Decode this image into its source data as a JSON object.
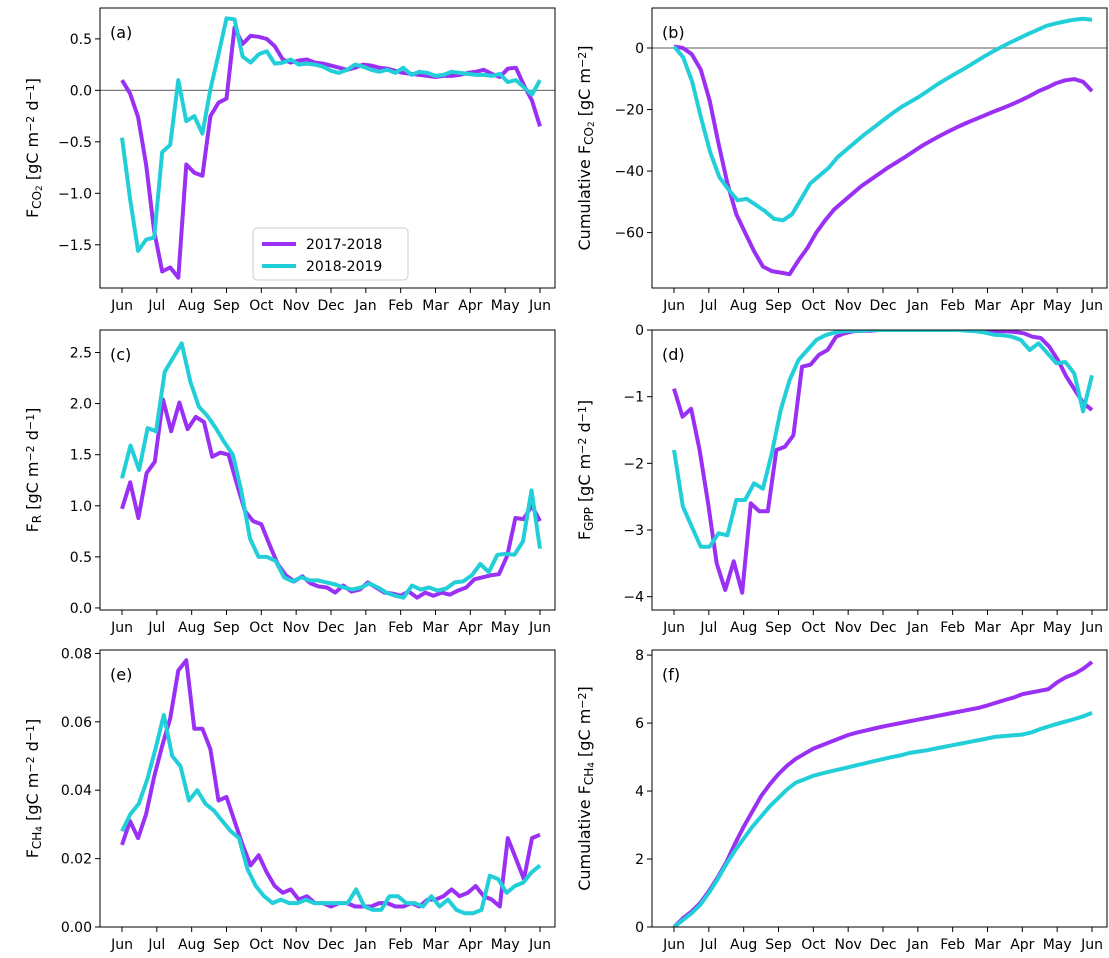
{
  "legend": [
    {
      "name": "2017-2018",
      "color": "#9b30f5"
    },
    {
      "name": "2018-2019",
      "color": "#22cfd9"
    }
  ],
  "chart_data": [
    {
      "type": "line",
      "panel": "(a)",
      "ylabel_main": "F",
      "ylabel_sub": "CO",
      "ylabel_subsub": "2",
      "ylabel_units": " [gC m",
      "ylabel_exp1": "−2",
      "ylabel_mid": " d",
      "ylabel_exp2": "−1",
      "ylabel_end": "]",
      "ylim": [
        -1.92,
        0.8
      ],
      "yticks": [
        -1.5,
        -1.0,
        -0.5,
        0.0,
        0.5
      ],
      "ytick_labels": [
        "−1.5",
        "−1.0",
        "−0.5",
        "0.0",
        "0.5"
      ],
      "zero_line": true,
      "series": [
        {
          "name": "2017-2018",
          "values": [
            0.1,
            -0.03,
            -0.26,
            -0.72,
            -1.37,
            -1.76,
            -1.72,
            -1.82,
            -0.72,
            -0.8,
            -0.83,
            -0.25,
            -0.12,
            -0.08,
            0.61,
            0.45,
            0.53,
            0.52,
            0.5,
            0.43,
            0.3,
            0.27,
            0.29,
            0.3,
            0.27,
            0.26,
            0.24,
            0.22,
            0.2,
            0.22,
            0.25,
            0.24,
            0.22,
            0.21,
            0.19,
            0.17,
            0.16,
            0.15,
            0.14,
            0.13,
            0.14,
            0.14,
            0.15,
            0.17,
            0.18,
            0.2,
            0.16,
            0.13,
            0.21,
            0.22,
            0.05,
            -0.1,
            -0.35
          ]
        },
        {
          "name": "2018-2019",
          "values": [
            -0.46,
            -1.05,
            -1.56,
            -1.45,
            -1.43,
            -0.6,
            -0.53,
            0.1,
            -0.3,
            -0.25,
            -0.42,
            0.01,
            0.35,
            0.7,
            0.69,
            0.33,
            0.27,
            0.35,
            0.38,
            0.26,
            0.27,
            0.3,
            0.25,
            0.26,
            0.25,
            0.23,
            0.19,
            0.17,
            0.2,
            0.25,
            0.23,
            0.2,
            0.18,
            0.2,
            0.17,
            0.22,
            0.15,
            0.18,
            0.17,
            0.14,
            0.15,
            0.18,
            0.17,
            0.16,
            0.15,
            0.15,
            0.14,
            0.16,
            0.08,
            0.1,
            0.03,
            -0.04,
            0.1
          ]
        }
      ]
    },
    {
      "type": "line",
      "panel": "(b)",
      "ylabel_main": "Cumulative F",
      "ylabel_sub": "CO",
      "ylabel_subsub": "2",
      "ylabel_units": " [gC m",
      "ylabel_exp1": "−2",
      "ylabel_mid": "",
      "ylabel_exp2": "",
      "ylabel_end": "]",
      "ylim": [
        -78,
        13
      ],
      "yticks": [
        -60,
        -40,
        -20,
        0
      ],
      "ytick_labels": [
        "−60",
        "−40",
        "−20",
        "0"
      ],
      "zero_line": true,
      "series": [
        {
          "name": "2017-2018",
          "values": [
            0.5,
            0,
            -2,
            -7,
            -17,
            -31,
            -44,
            -54,
            -60,
            -66,
            -71,
            -72.5,
            -73,
            -73.5,
            -69,
            -65,
            -60,
            -56,
            -52.5,
            -50,
            -47.5,
            -45,
            -43,
            -41,
            -39,
            -37.2,
            -35.4,
            -33.5,
            -31.6,
            -30,
            -28.4,
            -26.9,
            -25.5,
            -24.2,
            -23,
            -21.8,
            -20.6,
            -19.5,
            -18.3,
            -17,
            -15.6,
            -14,
            -12.8,
            -11.4,
            -10.5,
            -10.1,
            -11,
            -14
          ]
        },
        {
          "name": "2018-2019",
          "values": [
            0.5,
            -3,
            -11,
            -23,
            -34,
            -42,
            -46,
            -49.5,
            -49,
            -51,
            -53,
            -55.5,
            -56,
            -54,
            -49,
            -44,
            -41.5,
            -39,
            -35.5,
            -33,
            -30.5,
            -28,
            -25.8,
            -23.5,
            -21.3,
            -19.2,
            -17.5,
            -15.8,
            -13.8,
            -11.8,
            -10,
            -8.3,
            -6.6,
            -4.8,
            -3,
            -1.3,
            0.3,
            1.8,
            3.2,
            4.6,
            5.9,
            7.2,
            8,
            8.6,
            9.2,
            9.5,
            9.2
          ]
        }
      ]
    },
    {
      "type": "line",
      "panel": "(c)",
      "ylabel_main": "F",
      "ylabel_sub": "R",
      "ylabel_subsub": "",
      "ylabel_units": " [gC m",
      "ylabel_exp1": "−2",
      "ylabel_mid": " d",
      "ylabel_exp2": "−1",
      "ylabel_end": "]",
      "ylim": [
        -0.02,
        2.72
      ],
      "yticks": [
        0.0,
        0.5,
        1.0,
        1.5,
        2.0,
        2.5
      ],
      "ytick_labels": [
        "0.0",
        "0.5",
        "1.0",
        "1.5",
        "2.0",
        "2.5"
      ],
      "zero_line": false,
      "series": [
        {
          "name": "2017-2018",
          "values": [
            0.97,
            1.23,
            0.88,
            1.32,
            1.43,
            2.04,
            1.73,
            2.01,
            1.75,
            1.87,
            1.82,
            1.48,
            1.52,
            1.5,
            1.22,
            0.95,
            0.85,
            0.82,
            0.62,
            0.43,
            0.32,
            0.26,
            0.31,
            0.24,
            0.21,
            0.2,
            0.15,
            0.22,
            0.16,
            0.18,
            0.25,
            0.2,
            0.15,
            0.14,
            0.12,
            0.16,
            0.1,
            0.15,
            0.12,
            0.15,
            0.13,
            0.17,
            0.2,
            0.28,
            0.3,
            0.32,
            0.33,
            0.51,
            0.88,
            0.87,
            1.0,
            0.85
          ]
        },
        {
          "name": "2018-2019",
          "values": [
            1.27,
            1.59,
            1.35,
            1.76,
            1.73,
            2.31,
            2.45,
            2.59,
            2.22,
            1.97,
            1.88,
            1.76,
            1.62,
            1.5,
            1.14,
            0.68,
            0.5,
            0.5,
            0.46,
            0.3,
            0.26,
            0.3,
            0.27,
            0.27,
            0.25,
            0.23,
            0.2,
            0.18,
            0.2,
            0.24,
            0.2,
            0.15,
            0.12,
            0.1,
            0.22,
            0.18,
            0.2,
            0.17,
            0.19,
            0.25,
            0.26,
            0.32,
            0.43,
            0.35,
            0.52,
            0.53,
            0.52,
            0.65,
            1.15,
            0.58
          ]
        }
      ]
    },
    {
      "type": "line",
      "panel": "(d)",
      "ylabel_main": "F",
      "ylabel_sub": "GPP",
      "ylabel_subsub": "",
      "ylabel_units": " [gC m",
      "ylabel_exp1": "−2",
      "ylabel_mid": " d",
      "ylabel_exp2": "−1",
      "ylabel_end": "]",
      "ylim": [
        -4.2,
        0.0
      ],
      "yticks": [
        -4,
        -3,
        -2,
        -1,
        0
      ],
      "ytick_labels": [
        "−4",
        "−3",
        "−2",
        "−1",
        "0"
      ],
      "zero_line": false,
      "series": [
        {
          "name": "2017-2018",
          "values": [
            -0.88,
            -1.3,
            -1.18,
            -1.8,
            -2.6,
            -3.5,
            -3.9,
            -3.47,
            -3.94,
            -2.6,
            -2.72,
            -2.72,
            -1.8,
            -1.75,
            -1.58,
            -0.55,
            -0.52,
            -0.37,
            -0.3,
            -0.1,
            -0.05,
            -0.02,
            -0.01,
            -0.01,
            0,
            0,
            0,
            0,
            0,
            0,
            0,
            0,
            0,
            0,
            0,
            0,
            0,
            -0.01,
            -0.02,
            -0.02,
            -0.03,
            -0.05,
            -0.1,
            -0.12,
            -0.25,
            -0.45,
            -0.7,
            -0.9,
            -1.1,
            -1.2
          ]
        },
        {
          "name": "2018-2019",
          "values": [
            -1.8,
            -2.65,
            -2.95,
            -3.25,
            -3.25,
            -3.05,
            -3.08,
            -2.55,
            -2.55,
            -2.3,
            -2.38,
            -1.85,
            -1.2,
            -0.75,
            -0.45,
            -0.3,
            -0.15,
            -0.08,
            -0.04,
            -0.02,
            -0.01,
            -0.01,
            0,
            0,
            0,
            0,
            0,
            0,
            0,
            0,
            0,
            0,
            0,
            -0.01,
            -0.02,
            -0.04,
            -0.07,
            -0.08,
            -0.1,
            -0.15,
            -0.3,
            -0.2,
            -0.35,
            -0.5,
            -0.48,
            -0.65,
            -1.22,
            -0.68
          ]
        }
      ]
    },
    {
      "type": "line",
      "panel": "(e)",
      "ylabel_main": "F",
      "ylabel_sub": "CH",
      "ylabel_subsub": "4",
      "ylabel_units": " [gC m",
      "ylabel_exp1": "−2",
      "ylabel_mid": " d",
      "ylabel_exp2": "−1",
      "ylabel_end": "]",
      "ylim": [
        0.0,
        0.081
      ],
      "yticks": [
        0.0,
        0.02,
        0.04,
        0.06,
        0.08
      ],
      "ytick_labels": [
        "0.00",
        "0.02",
        "0.04",
        "0.06",
        "0.08"
      ],
      "zero_line": false,
      "series": [
        {
          "name": "2017-2018",
          "values": [
            0.024,
            0.031,
            0.026,
            0.033,
            0.044,
            0.053,
            0.061,
            0.075,
            0.078,
            0.058,
            0.058,
            0.052,
            0.037,
            0.038,
            0.031,
            0.024,
            0.018,
            0.021,
            0.016,
            0.012,
            0.01,
            0.011,
            0.008,
            0.009,
            0.007,
            0.007,
            0.006,
            0.007,
            0.007,
            0.006,
            0.006,
            0.006,
            0.007,
            0.007,
            0.006,
            0.006,
            0.007,
            0.006,
            0.008,
            0.008,
            0.009,
            0.011,
            0.009,
            0.01,
            0.012,
            0.009,
            0.008,
            0.006,
            0.026,
            0.02,
            0.014,
            0.026,
            0.027
          ]
        },
        {
          "name": "2018-2019",
          "values": [
            0.028,
            0.033,
            0.036,
            0.043,
            0.052,
            0.062,
            0.05,
            0.047,
            0.037,
            0.04,
            0.036,
            0.034,
            0.031,
            0.028,
            0.026,
            0.017,
            0.012,
            0.009,
            0.007,
            0.008,
            0.007,
            0.007,
            0.008,
            0.007,
            0.007,
            0.007,
            0.007,
            0.007,
            0.011,
            0.006,
            0.005,
            0.005,
            0.009,
            0.009,
            0.007,
            0.007,
            0.006,
            0.009,
            0.006,
            0.008,
            0.005,
            0.004,
            0.004,
            0.005,
            0.015,
            0.014,
            0.01,
            0.012,
            0.013,
            0.016,
            0.018
          ]
        }
      ]
    },
    {
      "type": "line",
      "panel": "(f)",
      "ylabel_main": "Cumulative F",
      "ylabel_sub": "CH",
      "ylabel_subsub": "4",
      "ylabel_units": " [gC m",
      "ylabel_exp1": "−2",
      "ylabel_mid": "",
      "ylabel_exp2": "",
      "ylabel_end": "]",
      "ylim": [
        0,
        8.15
      ],
      "yticks": [
        0,
        2,
        4,
        6,
        8
      ],
      "ytick_labels": [
        "0",
        "2",
        "4",
        "6",
        "8"
      ],
      "zero_line": false,
      "series": [
        {
          "name": "2017-2018",
          "values": [
            0,
            0.25,
            0.45,
            0.7,
            1.05,
            1.45,
            1.9,
            2.45,
            2.95,
            3.4,
            3.85,
            4.2,
            4.5,
            4.75,
            4.95,
            5.1,
            5.25,
            5.35,
            5.45,
            5.55,
            5.65,
            5.72,
            5.78,
            5.84,
            5.9,
            5.95,
            6.0,
            6.05,
            6.1,
            6.15,
            6.2,
            6.25,
            6.3,
            6.35,
            6.4,
            6.45,
            6.52,
            6.6,
            6.68,
            6.75,
            6.85,
            6.9,
            6.95,
            7.0,
            7.2,
            7.35,
            7.45,
            7.6,
            7.8
          ]
        },
        {
          "name": "2018-2019",
          "values": [
            0,
            0.2,
            0.4,
            0.65,
            1.0,
            1.4,
            1.85,
            2.25,
            2.6,
            2.95,
            3.25,
            3.55,
            3.8,
            4.05,
            4.25,
            4.35,
            4.45,
            4.52,
            4.58,
            4.64,
            4.7,
            4.76,
            4.82,
            4.88,
            4.94,
            5.0,
            5.05,
            5.12,
            5.16,
            5.2,
            5.25,
            5.3,
            5.35,
            5.4,
            5.45,
            5.5,
            5.55,
            5.6,
            5.62,
            5.64,
            5.66,
            5.72,
            5.82,
            5.9,
            5.98,
            6.05,
            6.12,
            6.2,
            6.3
          ]
        }
      ]
    }
  ],
  "x_tick_labels": [
    "Jun",
    "Jul",
    "Aug",
    "Sep",
    "Oct",
    "Nov",
    "Dec",
    "Jan",
    "Feb",
    "Mar",
    "Apr",
    "May",
    "Jun"
  ]
}
